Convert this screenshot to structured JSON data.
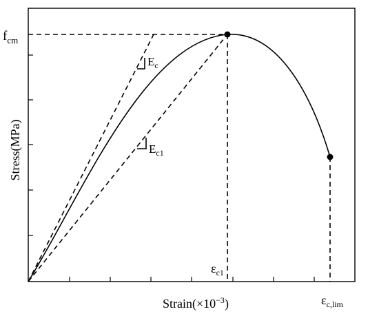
{
  "axes": {
    "y_label": "Stress(MPa)",
    "x_label_prefix": "Strain(×10",
    "x_label_exp": "−3",
    "x_label_suffix": ")"
  },
  "labels": {
    "fcm_main": "f",
    "fcm_sub": "cm",
    "ec_main": "E",
    "ec_sub": "c",
    "ec1_main": "E",
    "ec1_sub": "c1",
    "eps_c1_main": "ε",
    "eps_c1_sub": "c1",
    "eps_lim_main": "ε",
    "eps_lim_sub": "c,lim"
  }
}
